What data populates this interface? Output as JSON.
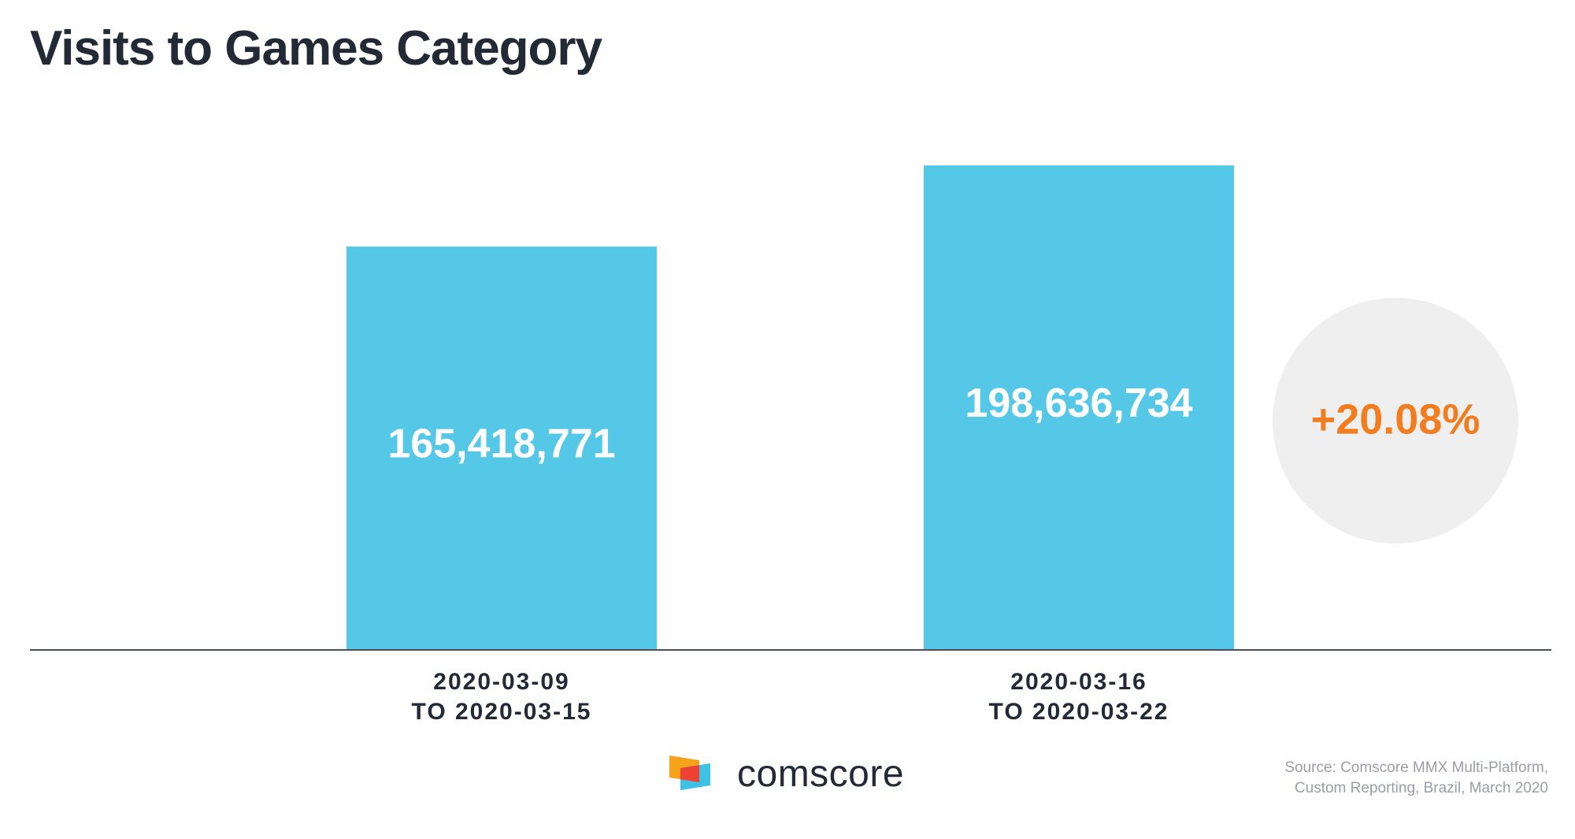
{
  "title": "Visits to Games Category",
  "chart_data": {
    "type": "bar",
    "title": "Visits to Games Category",
    "categories": [
      [
        "2020-03-09",
        "TO 2020-03-15"
      ],
      [
        "2020-03-16",
        "TO 2020-03-22"
      ]
    ],
    "values": [
      165418771,
      198636734
    ],
    "value_labels": [
      "165,418,771",
      "198,636,734"
    ],
    "xlabel": "",
    "ylabel": "",
    "grid": false,
    "legend": "none",
    "annotations": [
      {
        "text": "+20.08%",
        "position": "right of second bar"
      }
    ]
  },
  "colors": {
    "bar": "#55c8e8",
    "title": "#242a35",
    "change": "#f27d1e",
    "circle": "#efefef",
    "source": "#9a9da3"
  },
  "brand": {
    "name": "comscore",
    "logo_icon": "comscore-logo-icon"
  },
  "source": {
    "line1": "Source: Comscore MMX Multi-Platform,",
    "line2": "Custom Reporting, Brazil, March 2020"
  }
}
